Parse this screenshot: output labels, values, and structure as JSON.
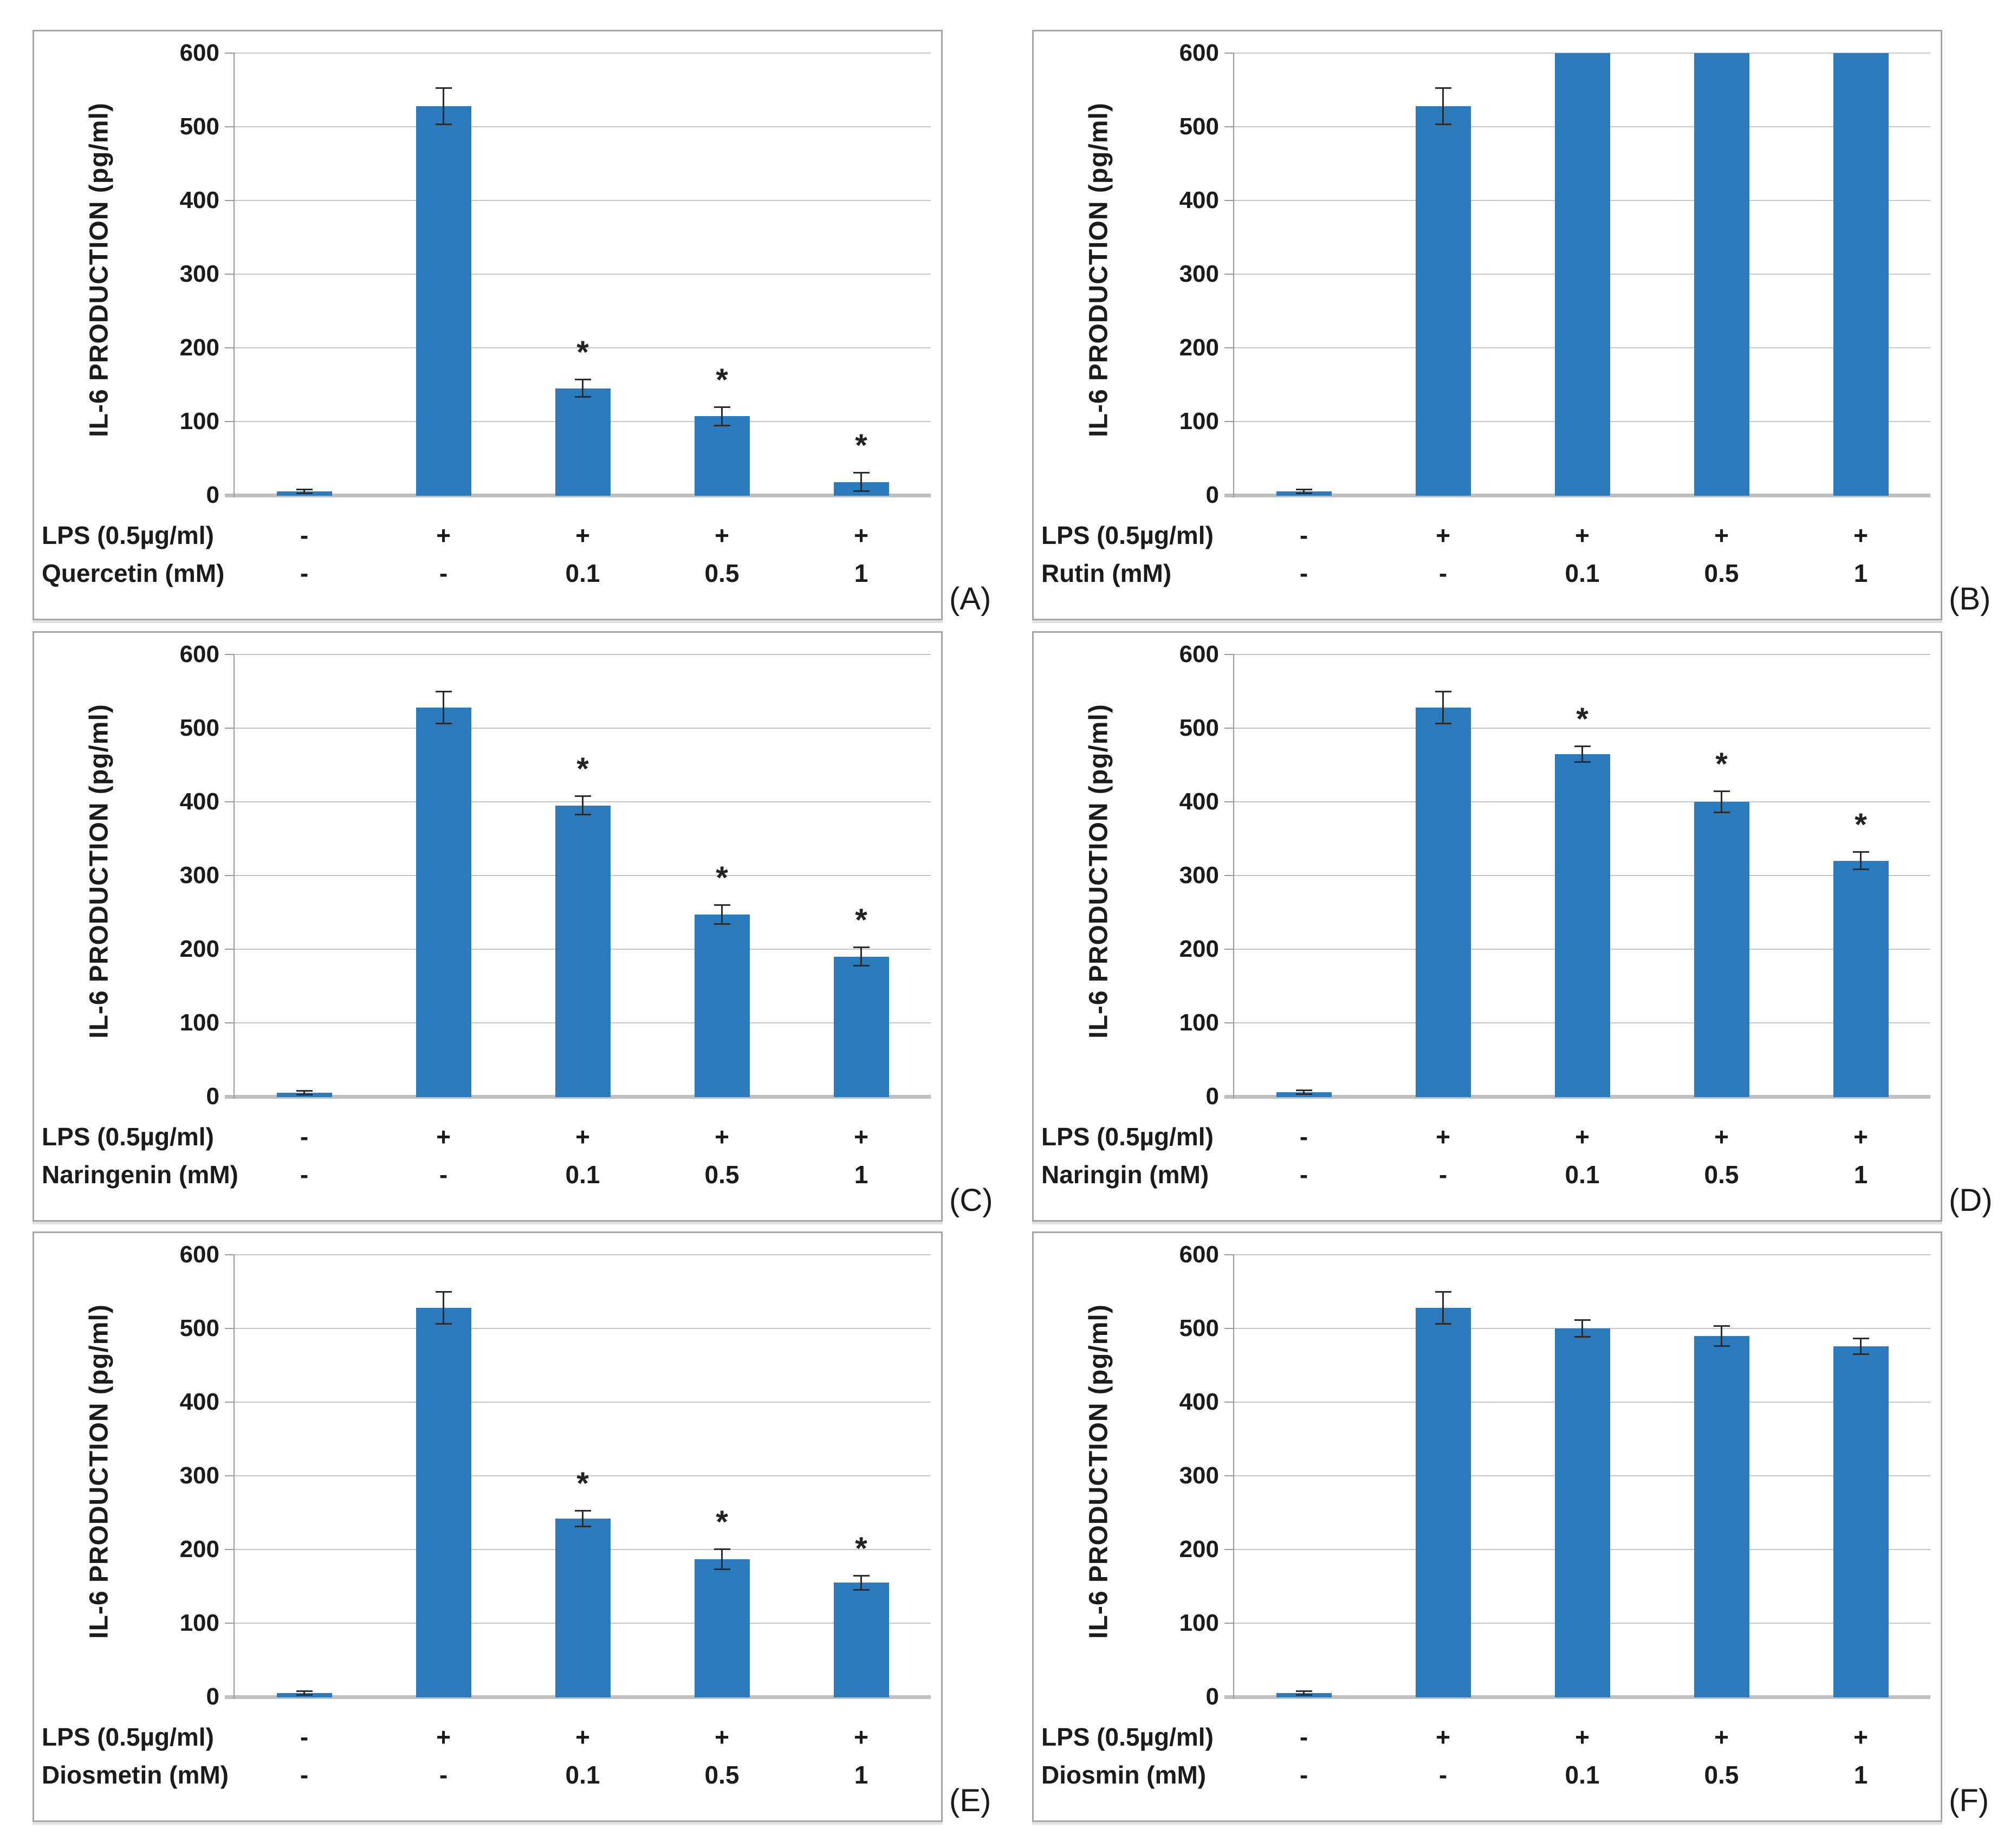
{
  "figure": {
    "y_axis_title": "IL-6 PRODUCTION (pg/ml)",
    "y_ticks": [
      "0",
      "100",
      "200",
      "300",
      "400",
      "500",
      "600"
    ],
    "ylim": [
      0,
      600
    ],
    "gridline_step": 100,
    "lps_row_label": "LPS (0.5µg/ml)",
    "significance_marker": "*",
    "bar_color": "#2A7ABC",
    "grid_color": "#C6C6C6",
    "axis_color": "#9A9A9A"
  },
  "chart_data": [
    {
      "type": "bar",
      "panel_label": "(A)",
      "ylabel": "IL-6 PRODUCTION (pg/ml)",
      "ylim": [
        0,
        600
      ],
      "compound_label": "Quercetin (mM)",
      "lps_values": [
        "-",
        "+",
        "+",
        "+",
        "+"
      ],
      "compound_values": [
        "-",
        "-",
        "0.1",
        "0.5",
        "1"
      ],
      "values": [
        5,
        528,
        145,
        107,
        18
      ],
      "errors": [
        3,
        25,
        12,
        13,
        13
      ],
      "significant": [
        false,
        false,
        true,
        true,
        true
      ],
      "clipped": [
        false,
        false,
        false,
        false,
        false
      ]
    },
    {
      "type": "bar",
      "panel_label": "(B)",
      "ylabel": "IL-6 PRODUCTION (pg/ml)",
      "ylim": [
        0,
        600
      ],
      "compound_label": "Rutin (mM)",
      "lps_values": [
        "-",
        "+",
        "+",
        "+",
        "+"
      ],
      "compound_values": [
        "-",
        "-",
        "0.1",
        "0.5",
        "1"
      ],
      "values": [
        5,
        528,
        600,
        600,
        600
      ],
      "errors": [
        3,
        25,
        0,
        0,
        0
      ],
      "significant": [
        false,
        false,
        false,
        false,
        false
      ],
      "clipped": [
        false,
        false,
        true,
        true,
        true
      ]
    },
    {
      "type": "bar",
      "panel_label": "(C)",
      "ylabel": "IL-6 PRODUCTION (pg/ml)",
      "ylim": [
        0,
        600
      ],
      "compound_label": "Naringenin (mM)",
      "lps_values": [
        "-",
        "+",
        "+",
        "+",
        "+"
      ],
      "compound_values": [
        "-",
        "-",
        "0.1",
        "0.5",
        "1"
      ],
      "values": [
        5,
        528,
        395,
        247,
        190
      ],
      "errors": [
        3,
        22,
        13,
        13,
        13
      ],
      "significant": [
        false,
        false,
        true,
        true,
        true
      ],
      "clipped": [
        false,
        false,
        false,
        false,
        false
      ]
    },
    {
      "type": "bar",
      "panel_label": "(D)",
      "ylabel": "IL-6 PRODUCTION (pg/ml)",
      "ylim": [
        0,
        600
      ],
      "compound_label": "Naringin (mM)",
      "lps_values": [
        "-",
        "+",
        "+",
        "+",
        "+"
      ],
      "compound_values": [
        "-",
        "-",
        "0.1",
        "0.5",
        "1"
      ],
      "values": [
        6,
        528,
        465,
        400,
        320
      ],
      "errors": [
        3,
        22,
        11,
        15,
        12
      ],
      "significant": [
        false,
        false,
        true,
        true,
        true
      ],
      "clipped": [
        false,
        false,
        false,
        false,
        false
      ]
    },
    {
      "type": "bar",
      "panel_label": "(E)",
      "ylabel": "IL-6 PRODUCTION (pg/ml)",
      "ylim": [
        0,
        600
      ],
      "compound_label": "Diosmetin (mM)",
      "lps_values": [
        "-",
        "+",
        "+",
        "+",
        "+"
      ],
      "compound_values": [
        "-",
        "-",
        "0.1",
        "0.5",
        "1"
      ],
      "values": [
        5,
        528,
        242,
        187,
        155
      ],
      "errors": [
        3,
        22,
        11,
        14,
        10
      ],
      "significant": [
        false,
        false,
        true,
        true,
        true
      ],
      "clipped": [
        false,
        false,
        false,
        false,
        false
      ]
    },
    {
      "type": "bar",
      "panel_label": "(F)",
      "ylabel": "IL-6 PRODUCTION (pg/ml)",
      "ylim": [
        0,
        600
      ],
      "compound_label": "Diosmin (mM)",
      "lps_values": [
        "-",
        "+",
        "+",
        "+",
        "+"
      ],
      "compound_values": [
        "-",
        "-",
        "0.1",
        "0.5",
        "1"
      ],
      "values": [
        5,
        528,
        500,
        490,
        476
      ],
      "errors": [
        3,
        22,
        12,
        14,
        11
      ],
      "significant": [
        false,
        false,
        false,
        false,
        false
      ],
      "clipped": [
        false,
        false,
        false,
        false,
        false
      ]
    }
  ]
}
